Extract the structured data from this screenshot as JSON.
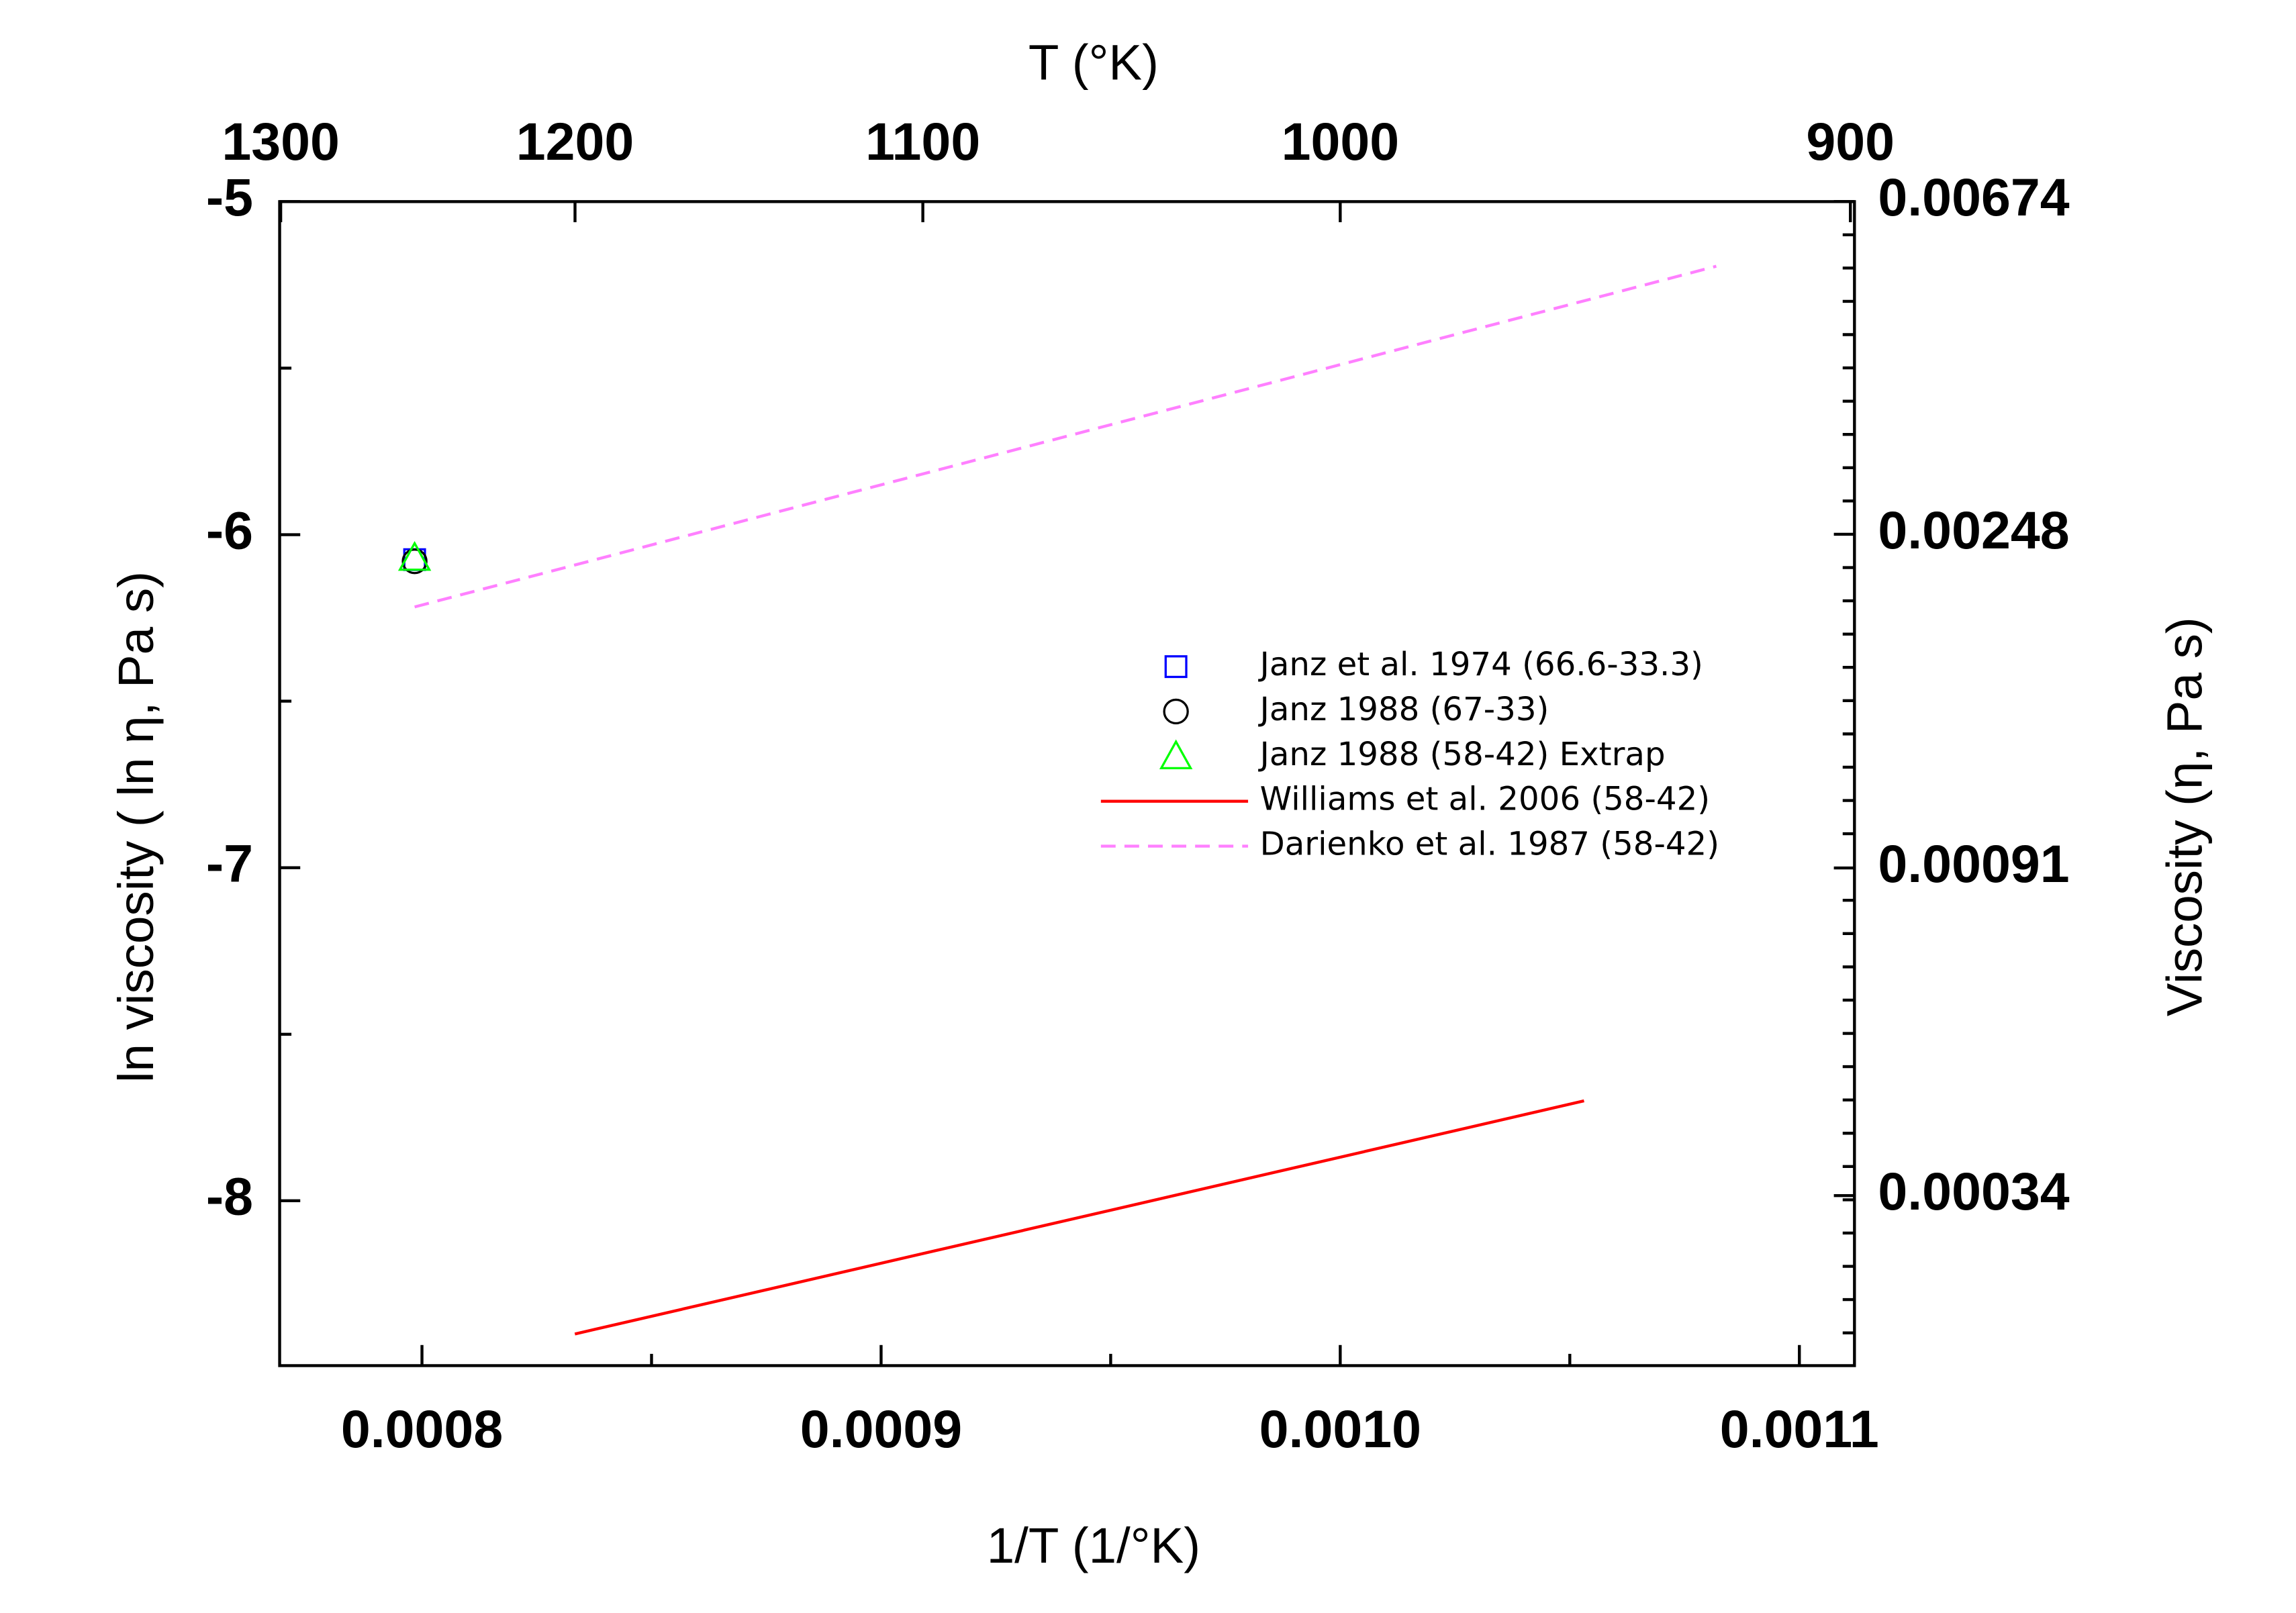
{
  "chart_data": {
    "type": "line",
    "xlabel": "1/T (1/°K)",
    "x2label": "T (°K)",
    "ylabel": "ln viscosity ( ln η, Pa s)",
    "y2label": "Viscosity (η, Pa s)",
    "xlim": [
      0.000769,
      0.001112
    ],
    "xticks": [
      {
        "value": 0.0008,
        "label": "0.0008"
      },
      {
        "value": 0.0009,
        "label": "0.0009"
      },
      {
        "value": 0.001,
        "label": "0.0010"
      },
      {
        "value": 0.0011,
        "label": "0.0011"
      }
    ],
    "xminor": 2,
    "x2_scale": "reciprocal",
    "x2ticks": [
      1300,
      1200,
      1100,
      1000,
      900
    ],
    "ylim": [
      -8.495,
      -5
    ],
    "yticks": [
      -5,
      -6,
      -7,
      -8
    ],
    "yminor": 2,
    "y2_scale": "log",
    "y2lim": [
      0.000204,
      0.006738
    ],
    "y2ticks": [
      0.00674,
      0.00248,
      0.00091,
      0.00034
    ],
    "y2minor": 10,
    "series": [
      {
        "name": "Janz et al. 1974 (66.6-33.3)",
        "color": "#0000ff",
        "mode": "marker",
        "marker": "square",
        "x": [
          0.0007984
        ],
        "values": [
          -6.075
        ]
      },
      {
        "name": "Janz 1988 (67-33)",
        "color": "#000000",
        "mode": "marker",
        "marker": "circle",
        "x": [
          0.0007984
        ],
        "values": [
          -6.08
        ]
      },
      {
        "name": "Janz 1988 (58-42) Extrap",
        "color": "#00ff00",
        "mode": "marker",
        "marker": "triangle",
        "x": [
          0.0007984
        ],
        "values": [
          -6.07
        ]
      },
      {
        "name": "Williams et al. 2006 (58-42)",
        "color": "#ff0000",
        "mode": "line",
        "dash": false,
        "x": [
          0.0008333,
          0.0010531
        ],
        "values": [
          -8.4,
          -7.7
        ]
      },
      {
        "name": "Darienko et al. 1987 (58-42)",
        "color": "#ff80ff",
        "mode": "line",
        "dash": true,
        "x": [
          0.0007984,
          0.0010819
        ],
        "values": [
          -6.217,
          -5.194
        ]
      }
    ]
  }
}
